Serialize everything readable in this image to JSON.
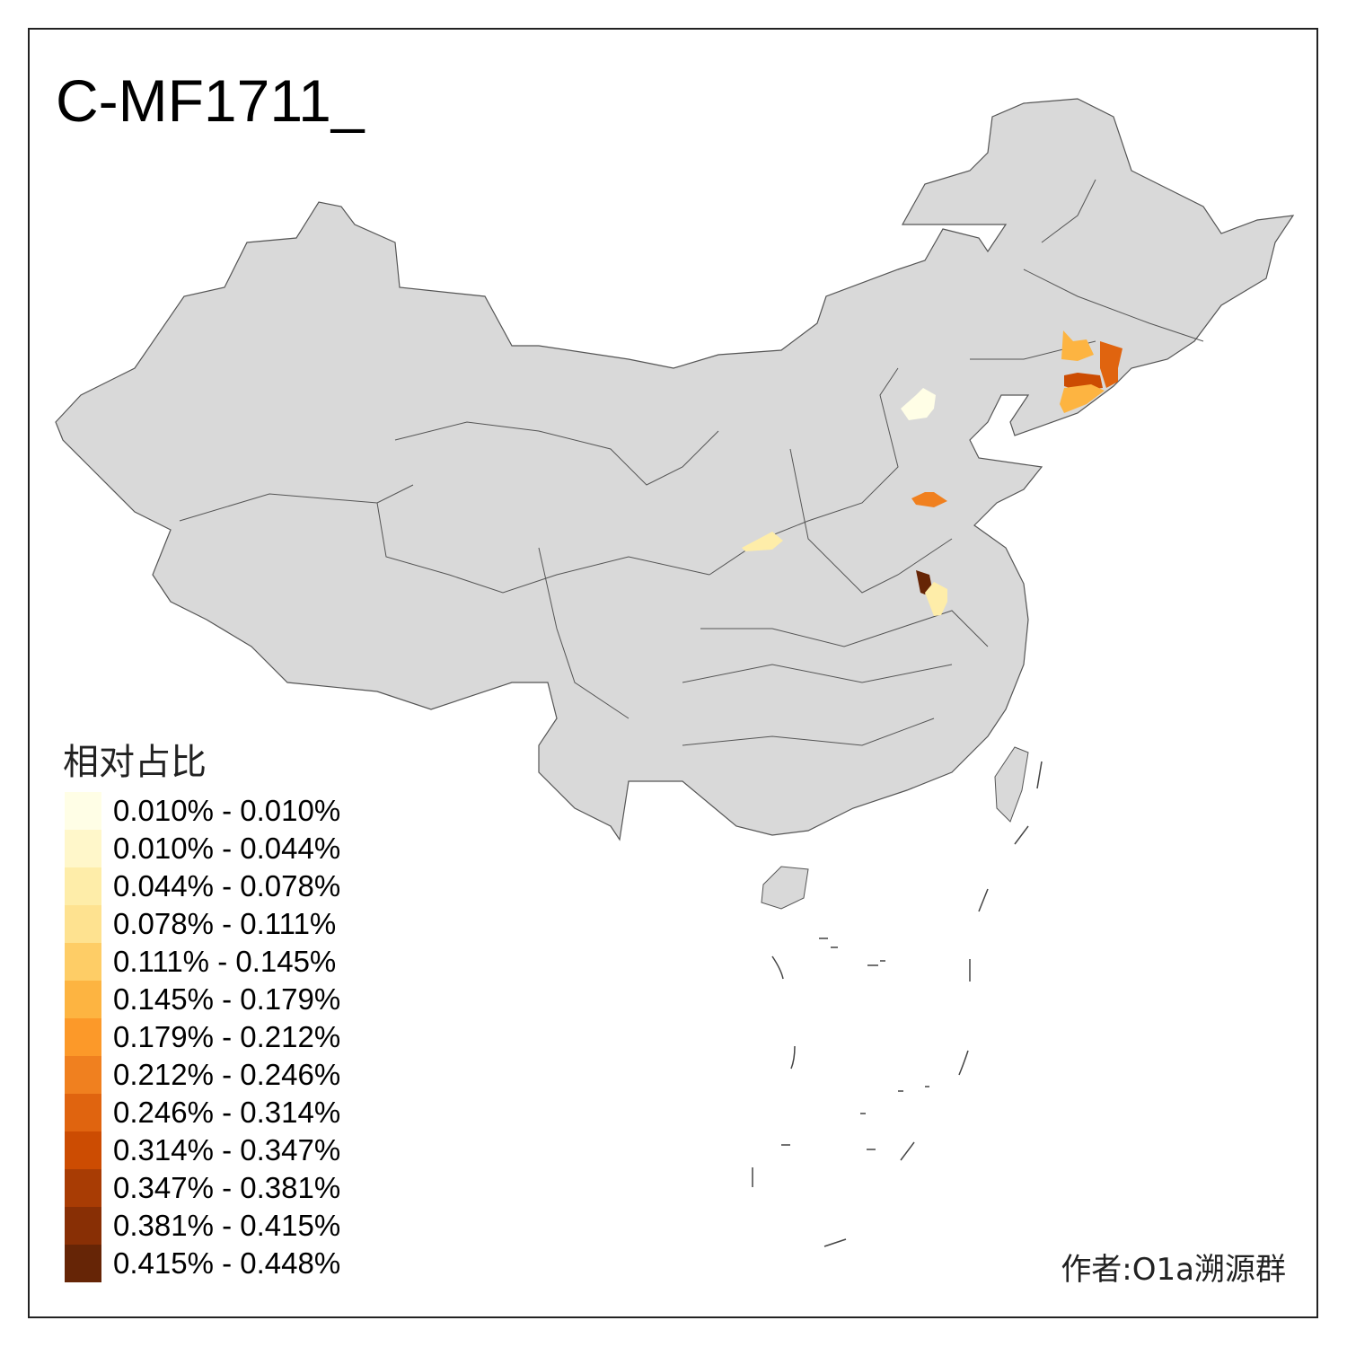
{
  "title": "C-MF1711_",
  "legend": {
    "title": "相对占比",
    "items": [
      {
        "label": "0.010% - 0.010%",
        "color": "#FFFEE6"
      },
      {
        "label": "0.010% - 0.044%",
        "color": "#FFF7CA"
      },
      {
        "label": "0.044% - 0.078%",
        "color": "#FEEDA9"
      },
      {
        "label": "0.078% - 0.111%",
        "color": "#FEE290"
      },
      {
        "label": "0.111% - 0.145%",
        "color": "#FECD66"
      },
      {
        "label": "0.145% - 0.179%",
        "color": "#FDB441"
      },
      {
        "label": "0.179% - 0.212%",
        "color": "#FC9929"
      },
      {
        "label": "0.212% - 0.246%",
        "color": "#F0801F"
      },
      {
        "label": "0.246% - 0.314%",
        "color": "#E0640F"
      },
      {
        "label": "0.314% - 0.347%",
        "color": "#CC4C02"
      },
      {
        "label": "0.347% - 0.381%",
        "color": "#A83C04"
      },
      {
        "label": "0.381% - 0.415%",
        "color": "#882F05"
      },
      {
        "label": "0.415% - 0.448%",
        "color": "#662506"
      }
    ]
  },
  "map": {
    "land_color": "#D9D9D9",
    "border_color": "#555555"
  },
  "credit": "作者:O1a溯源群"
}
